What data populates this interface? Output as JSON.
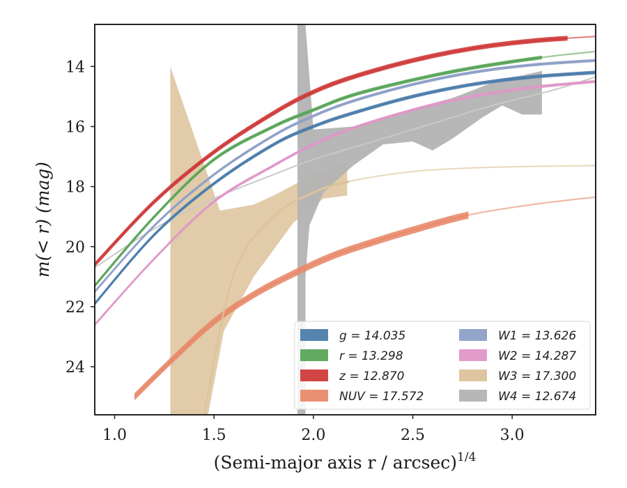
{
  "chart_data": {
    "type": "line",
    "xlabel": "(Semi-major axis r / arcsec)",
    "xlabel_super": "1/4",
    "ylabel": "m(< r) (mag)",
    "xlim": [
      0.9,
      3.42
    ],
    "ylim": [
      25.6,
      12.6
    ],
    "xticks": [
      1.0,
      1.5,
      2.0,
      2.5,
      3.0
    ],
    "xtick_labels": [
      "1.0",
      "1.5",
      "2.0",
      "2.5",
      "3.0"
    ],
    "yticks": [
      14,
      16,
      18,
      20,
      22,
      24
    ],
    "ytick_labels": [
      "14",
      "16",
      "18",
      "20",
      "22",
      "24"
    ],
    "grid": false,
    "legend_position": "lower-right",
    "series": [
      {
        "name": "g = 14.035",
        "color": "#4c7dab",
        "band_halfwidth": 0.06,
        "x": [
          0.9,
          1.2,
          1.5,
          1.8,
          2.0,
          2.2,
          2.5,
          2.8,
          3.1,
          3.42
        ],
        "y": [
          21.9,
          19.6,
          17.9,
          16.6,
          16.0,
          15.55,
          15.0,
          14.6,
          14.35,
          14.2
        ],
        "end_x": 3.42,
        "faded_x": 3.42
      },
      {
        "name": "r = 13.298",
        "color": "#5aa55a",
        "band_halfwidth": 0.06,
        "x": [
          0.9,
          1.2,
          1.5,
          1.8,
          2.0,
          2.2,
          2.5,
          2.8,
          3.15,
          3.42
        ],
        "y": [
          21.3,
          19.0,
          17.1,
          16.0,
          15.45,
          14.95,
          14.45,
          14.05,
          13.7,
          13.5
        ],
        "end_x": 3.42,
        "faded_x": 3.15
      },
      {
        "name": "z = 12.870",
        "color": "#cf3b3b",
        "band_halfwidth": 0.08,
        "x": [
          0.9,
          1.2,
          1.5,
          1.8,
          2.0,
          2.2,
          2.5,
          2.8,
          3.1,
          3.42
        ],
        "y": [
          20.6,
          18.5,
          16.85,
          15.55,
          14.85,
          14.35,
          13.8,
          13.4,
          13.15,
          13.0
        ],
        "end_x": 3.42,
        "faded_x": 3.3
      },
      {
        "name": "NUV = 17.572",
        "color": "#e8896a",
        "band_halfwidth": 0.12,
        "x": [
          1.1,
          1.3,
          1.5,
          1.7,
          1.9,
          2.1,
          2.3,
          2.5,
          2.78,
          3.1,
          3.42
        ],
        "y": [
          25.0,
          23.7,
          22.5,
          21.6,
          20.9,
          20.3,
          19.85,
          19.45,
          18.95,
          18.6,
          18.35
        ],
        "end_x": 3.42,
        "faded_x": 2.78
      },
      {
        "name": "W1 = 13.626",
        "color": "#8ea0c8",
        "band_halfwidth": 0.05,
        "x": [
          0.9,
          1.2,
          1.5,
          1.8,
          2.0,
          2.2,
          2.5,
          2.8,
          3.1,
          3.42
        ],
        "y": [
          21.5,
          19.3,
          17.6,
          16.3,
          15.65,
          15.15,
          14.6,
          14.2,
          13.95,
          13.8
        ],
        "end_x": 3.42,
        "faded_x": 3.42
      },
      {
        "name": "W2 = 14.287",
        "color": "#e097c8",
        "band_halfwidth": 0.05,
        "x": [
          0.9,
          1.2,
          1.5,
          1.8,
          2.0,
          2.2,
          2.5,
          2.8,
          3.1,
          3.42
        ],
        "y": [
          22.6,
          20.4,
          18.5,
          17.3,
          16.6,
          16.05,
          15.45,
          15.0,
          14.7,
          14.5
        ],
        "end_x": 3.42,
        "faded_x": 3.42
      },
      {
        "name": "W3 = 17.300",
        "color": "#dcc29a",
        "band_halfwidth": 0.04,
        "x": [
          1.45,
          1.6,
          1.8,
          2.0,
          2.2,
          2.5,
          2.8,
          3.1,
          3.42
        ],
        "y": [
          25.6,
          20.9,
          19.0,
          18.2,
          17.8,
          17.5,
          17.38,
          17.33,
          17.3
        ],
        "end_x": 3.42,
        "faded_x": 2.18
      }
    ],
    "extra_curves": [
      {
        "color": "#c9c9c9",
        "x": [
          0.9,
          1.2,
          1.5,
          1.8,
          2.0,
          2.3,
          2.6,
          2.9,
          3.2,
          3.42
        ],
        "y": [
          20.7,
          19.4,
          18.4,
          17.6,
          17.1,
          16.5,
          15.9,
          15.3,
          14.8,
          14.35
        ]
      }
    ],
    "bands": [
      {
        "name": "W3 = 17.300",
        "color": "#dcc29a",
        "upper": [
          [
            1.28,
            14.0
          ],
          [
            1.53,
            18.8
          ],
          [
            1.7,
            18.6
          ],
          [
            1.8,
            18.3
          ],
          [
            2.0,
            17.6
          ],
          [
            2.17,
            17.2
          ],
          [
            2.17,
            18.3
          ]
        ],
        "lower": [
          [
            1.28,
            25.6
          ],
          [
            1.47,
            25.6
          ],
          [
            1.55,
            22.8
          ],
          [
            1.7,
            21.0
          ],
          [
            1.9,
            19.2
          ],
          [
            2.05,
            18.4
          ],
          [
            2.17,
            18.3
          ]
        ]
      },
      {
        "name": "W4 = 12.674",
        "color": "#b3b3b3",
        "upper": [
          [
            1.92,
            12.6
          ],
          [
            1.96,
            12.6
          ],
          [
            2.0,
            16.1
          ],
          [
            2.2,
            16.0
          ],
          [
            2.35,
            15.7
          ],
          [
            2.5,
            15.4
          ],
          [
            2.7,
            15.05
          ],
          [
            2.8,
            14.8
          ],
          [
            2.95,
            14.4
          ],
          [
            3.05,
            14.3
          ],
          [
            3.15,
            14.15
          ],
          [
            3.15,
            15.6
          ]
        ],
        "lower": [
          [
            1.92,
            12.6
          ],
          [
            1.92,
            25.6
          ],
          [
            1.96,
            25.6
          ],
          [
            1.96,
            21.0
          ],
          [
            1.98,
            19.3
          ],
          [
            2.05,
            18.2
          ],
          [
            2.2,
            17.3
          ],
          [
            2.35,
            16.6
          ],
          [
            2.5,
            16.5
          ],
          [
            2.6,
            16.8
          ],
          [
            2.7,
            16.4
          ],
          [
            2.85,
            15.7
          ],
          [
            2.95,
            15.3
          ],
          [
            3.05,
            15.6
          ],
          [
            3.15,
            15.6
          ]
        ]
      }
    ],
    "legend": [
      {
        "label": "g = 14.035",
        "color": "#4c7dab"
      },
      {
        "label": "r = 13.298",
        "color": "#5aa55a"
      },
      {
        "label": "z = 12.870",
        "color": "#cf3b3b"
      },
      {
        "label": "NUV = 17.572",
        "color": "#e8896a"
      },
      {
        "label": "W1 = 13.626",
        "color": "#8ea0c8"
      },
      {
        "label": "W2 = 14.287",
        "color": "#e097c8"
      },
      {
        "label": "W3 = 17.300",
        "color": "#dcc29a"
      },
      {
        "label": "W4 = 12.674",
        "color": "#b3b3b3"
      }
    ]
  }
}
